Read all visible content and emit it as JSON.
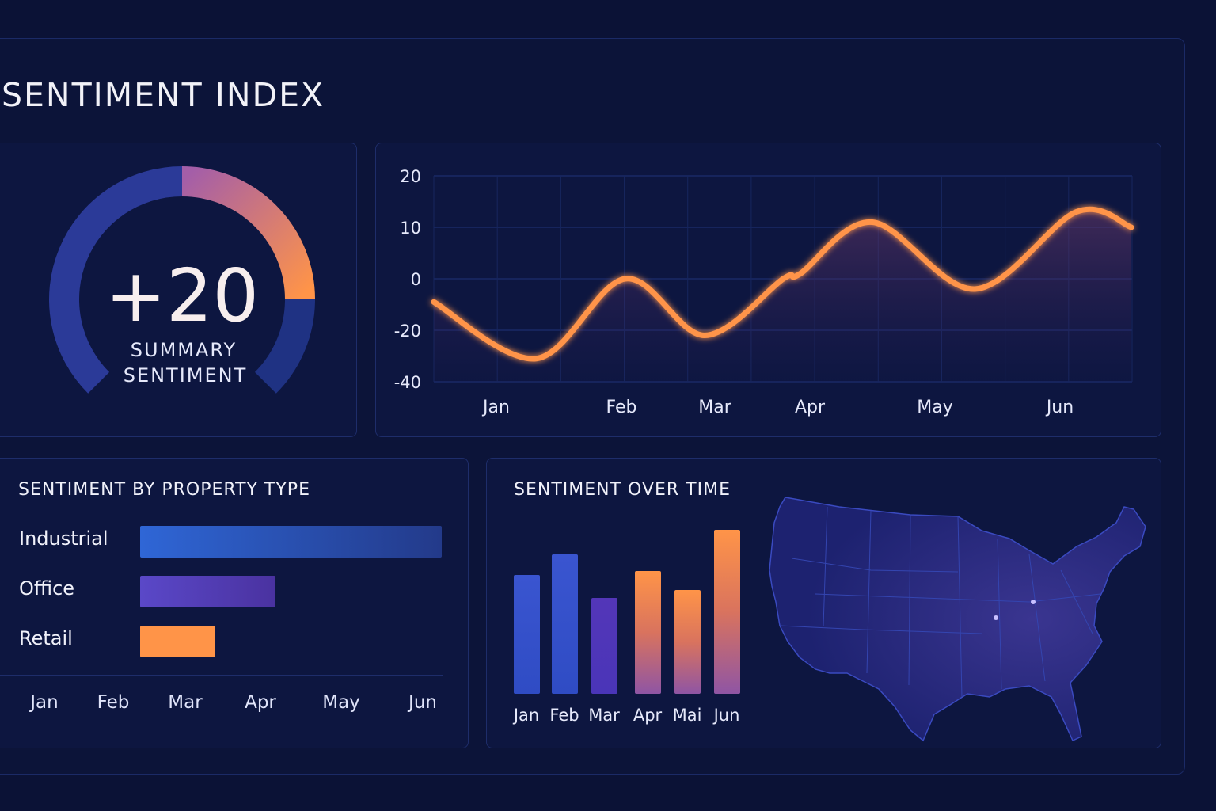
{
  "header": {
    "title": "SENTIMENT INDEX"
  },
  "gauge": {
    "value_label": "+20",
    "caption_line1": "SUMMARY",
    "caption_line2": "SENTIMENT",
    "fill_fraction": 0.333,
    "colors": {
      "track": "#2b3a98",
      "fill_start": "#a45ea8",
      "fill_end": "#ff9448",
      "remainder": "#1f3283"
    }
  },
  "chart_data": [
    {
      "type": "line",
      "y_ticks": [
        20,
        10,
        0,
        -20,
        -40
      ],
      "x_ticks": [
        "Jan",
        "Feb",
        "Mar",
        "Apr",
        "May",
        "Jun"
      ],
      "grid": true,
      "color": "#ff9448",
      "points": [
        {
          "x": 0.5,
          "y": -9
        },
        {
          "x": 1.32,
          "y": -31
        },
        {
          "x": 2.04,
          "y": 0
        },
        {
          "x": 2.89,
          "y": -22
        },
        {
          "x": 3.72,
          "y": 0
        },
        {
          "x": 3.9,
          "y": 1
        },
        {
          "x": 4.5,
          "y": 11
        },
        {
          "x": 5.32,
          "y": -4
        },
        {
          "x": 6.13,
          "y": 13
        },
        {
          "x": 6.57,
          "y": 10
        }
      ]
    },
    {
      "type": "bar",
      "orientation": "horizontal",
      "title": "SENTIMENT BY PROPERTY TYPE",
      "categories": [
        "Industrial",
        "Office",
        "Retail"
      ],
      "values": [
        100,
        45,
        25
      ],
      "colors": [
        "#2f66d6",
        "#5a48c8",
        "#ff9448"
      ],
      "x_ticks": [
        "Jan",
        "Feb",
        "Mar",
        "Apr",
        "May",
        "Jun"
      ]
    },
    {
      "type": "bar",
      "title": "SENTIMENT OVER TIME",
      "categories": [
        "Jan",
        "Feb",
        "Mar",
        "Apr",
        "Mai",
        "Jun"
      ],
      "values": [
        150,
        176,
        121,
        155,
        131,
        207
      ],
      "colors": [
        "blue",
        "blue",
        "purple",
        "orange",
        "orange",
        "orange"
      ]
    }
  ],
  "map": {
    "region": "United States",
    "icon": "us-map"
  }
}
